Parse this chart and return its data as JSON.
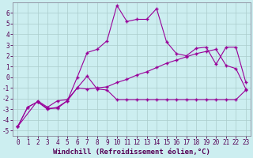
{
  "xlabel": "Windchill (Refroidissement éolien,°C)",
  "bg_color": "#cceef0",
  "grid_color": "#aacccc",
  "line_color": "#990099",
  "xlim": [
    -0.5,
    23.5
  ],
  "ylim": [
    -5.5,
    7.0
  ],
  "xticks": [
    0,
    1,
    2,
    3,
    4,
    5,
    6,
    7,
    8,
    9,
    10,
    11,
    12,
    13,
    14,
    15,
    16,
    17,
    18,
    19,
    20,
    21,
    22,
    23
  ],
  "yticks": [
    -5,
    -4,
    -3,
    -2,
    -1,
    0,
    1,
    2,
    3,
    4,
    5,
    6
  ],
  "curve1_x": [
    0,
    1,
    2,
    3,
    4,
    5,
    6,
    7,
    8,
    9,
    10,
    11,
    12,
    13,
    14,
    15,
    16,
    17,
    18,
    19,
    20,
    21,
    22,
    23
  ],
  "curve1_y": [
    -4.6,
    -2.8,
    -2.3,
    -2.9,
    -2.9,
    -2.2,
    -1.0,
    0.1,
    -1.1,
    -1.2,
    -2.1,
    -2.1,
    -2.1,
    -2.1,
    -2.1,
    -2.1,
    -2.1,
    -2.1,
    -2.1,
    -2.1,
    -2.1,
    -2.1,
    -2.1,
    -1.2
  ],
  "curve2_x": [
    0,
    1,
    2,
    3,
    4,
    5,
    6,
    7,
    8,
    9,
    10,
    11,
    12,
    13,
    14,
    15,
    16,
    17,
    18,
    19,
    20,
    21,
    22,
    23
  ],
  "curve2_y": [
    -4.6,
    -2.8,
    -2.3,
    -3.0,
    -2.8,
    -2.2,
    0.0,
    2.3,
    2.6,
    3.4,
    6.7,
    5.2,
    5.4,
    5.4,
    6.4,
    3.3,
    2.2,
    2.0,
    2.7,
    2.8,
    1.2,
    2.8,
    2.8,
    -0.5
  ],
  "curve3_x": [
    0,
    2,
    3,
    4,
    5,
    6,
    7,
    8,
    9,
    10,
    11,
    12,
    13,
    14,
    15,
    16,
    17,
    18,
    19,
    20,
    21,
    22,
    23
  ],
  "curve3_y": [
    -4.6,
    -2.2,
    -2.8,
    -2.2,
    -2.1,
    -1.0,
    -1.1,
    -1.0,
    -0.9,
    -0.5,
    -0.2,
    0.2,
    0.5,
    0.9,
    1.3,
    1.6,
    1.9,
    2.2,
    2.4,
    2.6,
    1.1,
    0.8,
    -1.1
  ],
  "font_size_label": 6.5,
  "font_size_tick": 5.5
}
